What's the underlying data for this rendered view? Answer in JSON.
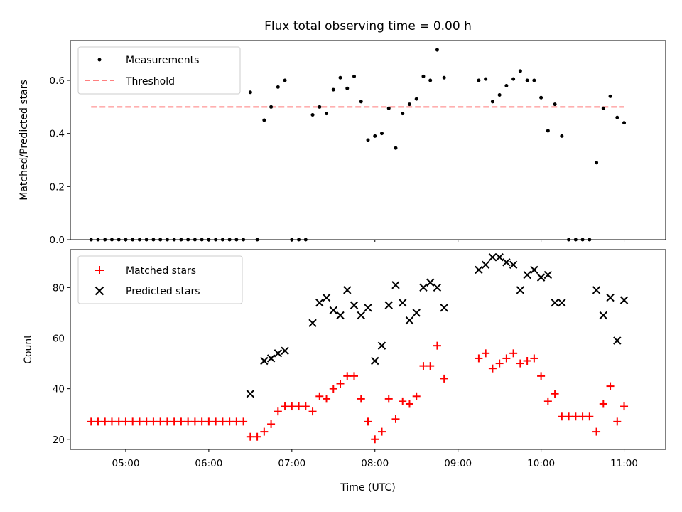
{
  "chart_data": [
    {
      "type": "scatter",
      "title": "Flux total observing time = 0.00 h",
      "xlabel": "",
      "ylabel": "Matched/Predicted stars",
      "ylim": [
        0,
        0.75
      ],
      "yticks": [
        0,
        0.2,
        0.4,
        0.6
      ],
      "ytick_labels": [
        "0.0",
        "0.2",
        "0.4",
        "0.6"
      ],
      "legend": {
        "placement": "top-left",
        "entries": [
          "Measurements",
          "Threshold"
        ]
      },
      "threshold": {
        "name": "Threshold",
        "value": 0.5,
        "x": [
          "04:35",
          "11:00"
        ],
        "color": "#ff7f7f"
      },
      "series": [
        {
          "name": "Measurements",
          "color": "#000000",
          "marker": "dot",
          "points": [
            [
              "04:35",
              0
            ],
            [
              "04:40",
              0
            ],
            [
              "04:45",
              0
            ],
            [
              "04:50",
              0
            ],
            [
              "04:55",
              0
            ],
            [
              "05:00",
              0
            ],
            [
              "05:05",
              0
            ],
            [
              "05:10",
              0
            ],
            [
              "05:15",
              0
            ],
            [
              "05:20",
              0
            ],
            [
              "05:25",
              0
            ],
            [
              "05:30",
              0
            ],
            [
              "05:35",
              0
            ],
            [
              "05:40",
              0
            ],
            [
              "05:45",
              0
            ],
            [
              "05:50",
              0
            ],
            [
              "05:55",
              0
            ],
            [
              "06:00",
              0
            ],
            [
              "06:05",
              0
            ],
            [
              "06:10",
              0
            ],
            [
              "06:15",
              0
            ],
            [
              "06:20",
              0
            ],
            [
              "06:25",
              0
            ],
            [
              "06:30",
              0.555
            ],
            [
              "06:35",
              0
            ],
            [
              "06:40",
              0.45
            ],
            [
              "06:45",
              0.5
            ],
            [
              "06:50",
              0.575
            ],
            [
              "06:55",
              0.6
            ],
            [
              "07:00",
              0
            ],
            [
              "07:05",
              0
            ],
            [
              "07:10",
              0
            ],
            [
              "07:15",
              0.47
            ],
            [
              "07:20",
              0.5
            ],
            [
              "07:25",
              0.475
            ],
            [
              "07:30",
              0.565
            ],
            [
              "07:35",
              0.61
            ],
            [
              "07:40",
              0.57
            ],
            [
              "07:45",
              0.615
            ],
            [
              "07:50",
              0.52
            ],
            [
              "07:55",
              0.375
            ],
            [
              "08:00",
              0.39
            ],
            [
              "08:05",
              0.4
            ],
            [
              "08:10",
              0.495
            ],
            [
              "08:15",
              0.345
            ],
            [
              "08:20",
              0.475
            ],
            [
              "08:25",
              0.51
            ],
            [
              "08:30",
              0.53
            ],
            [
              "08:35",
              0.615
            ],
            [
              "08:40",
              0.6
            ],
            [
              "08:45",
              0.715
            ],
            [
              "08:50",
              0.61
            ],
            [
              "09:15",
              0.6
            ],
            [
              "09:20",
              0.605
            ],
            [
              "09:25",
              0.52
            ],
            [
              "09:30",
              0.545
            ],
            [
              "09:35",
              0.58
            ],
            [
              "09:40",
              0.605
            ],
            [
              "09:45",
              0.635
            ],
            [
              "09:50",
              0.6
            ],
            [
              "09:55",
              0.6
            ],
            [
              "10:00",
              0.535
            ],
            [
              "10:05",
              0.41
            ],
            [
              "10:10",
              0.51
            ],
            [
              "10:15",
              0.39
            ],
            [
              "10:20",
              0
            ],
            [
              "10:25",
              0
            ],
            [
              "10:30",
              0
            ],
            [
              "10:35",
              0
            ],
            [
              "10:40",
              0.29
            ],
            [
              "10:45",
              0.495
            ],
            [
              "10:50",
              0.54
            ],
            [
              "10:55",
              0.46
            ],
            [
              "11:00",
              0.44
            ]
          ]
        }
      ]
    },
    {
      "type": "scatter",
      "title": "",
      "xlabel": "Time (UTC)",
      "ylabel": "Count",
      "xlim": [
        "04:20",
        "11:30"
      ],
      "xticks": [
        "05:00",
        "06:00",
        "07:00",
        "08:00",
        "09:00",
        "10:00",
        "11:00"
      ],
      "ylim": [
        16,
        95
      ],
      "yticks": [
        20,
        40,
        60,
        80
      ],
      "ytick_labels": [
        "20",
        "40",
        "60",
        "80"
      ],
      "legend": {
        "placement": "top-left",
        "entries": [
          "Matched stars",
          "Predicted stars"
        ]
      },
      "series": [
        {
          "name": "Matched stars",
          "color": "#ff0000",
          "marker": "plus",
          "points": [
            [
              "04:35",
              27
            ],
            [
              "04:40",
              27
            ],
            [
              "04:45",
              27
            ],
            [
              "04:50",
              27
            ],
            [
              "04:55",
              27
            ],
            [
              "05:00",
              27
            ],
            [
              "05:05",
              27
            ],
            [
              "05:10",
              27
            ],
            [
              "05:15",
              27
            ],
            [
              "05:20",
              27
            ],
            [
              "05:25",
              27
            ],
            [
              "05:30",
              27
            ],
            [
              "05:35",
              27
            ],
            [
              "05:40",
              27
            ],
            [
              "05:45",
              27
            ],
            [
              "05:50",
              27
            ],
            [
              "05:55",
              27
            ],
            [
              "06:00",
              27
            ],
            [
              "06:05",
              27
            ],
            [
              "06:10",
              27
            ],
            [
              "06:15",
              27
            ],
            [
              "06:20",
              27
            ],
            [
              "06:25",
              27
            ],
            [
              "06:30",
              21
            ],
            [
              "06:35",
              21
            ],
            [
              "06:40",
              23
            ],
            [
              "06:45",
              26
            ],
            [
              "06:50",
              31
            ],
            [
              "06:55",
              33
            ],
            [
              "07:00",
              33
            ],
            [
              "07:05",
              33
            ],
            [
              "07:10",
              33
            ],
            [
              "07:15",
              31
            ],
            [
              "07:20",
              37
            ],
            [
              "07:25",
              36
            ],
            [
              "07:30",
              40
            ],
            [
              "07:35",
              42
            ],
            [
              "07:40",
              45
            ],
            [
              "07:45",
              45
            ],
            [
              "07:50",
              36
            ],
            [
              "07:55",
              27
            ],
            [
              "08:00",
              20
            ],
            [
              "08:05",
              23
            ],
            [
              "08:10",
              36
            ],
            [
              "08:15",
              28
            ],
            [
              "08:20",
              35
            ],
            [
              "08:25",
              34
            ],
            [
              "08:30",
              37
            ],
            [
              "08:35",
              49
            ],
            [
              "08:40",
              49
            ],
            [
              "08:45",
              57
            ],
            [
              "08:50",
              44
            ],
            [
              "09:15",
              52
            ],
            [
              "09:20",
              54
            ],
            [
              "09:25",
              48
            ],
            [
              "09:30",
              50
            ],
            [
              "09:35",
              52
            ],
            [
              "09:40",
              54
            ],
            [
              "09:45",
              50
            ],
            [
              "09:50",
              51
            ],
            [
              "09:55",
              52
            ],
            [
              "10:00",
              45
            ],
            [
              "10:05",
              35
            ],
            [
              "10:10",
              38
            ],
            [
              "10:15",
              29
            ],
            [
              "10:20",
              29
            ],
            [
              "10:25",
              29
            ],
            [
              "10:30",
              29
            ],
            [
              "10:35",
              29
            ],
            [
              "10:40",
              23
            ],
            [
              "10:45",
              34
            ],
            [
              "10:50",
              41
            ],
            [
              "10:55",
              27
            ],
            [
              "11:00",
              33
            ]
          ]
        },
        {
          "name": "Predicted stars",
          "color": "#000000",
          "marker": "x",
          "points": [
            [
              "06:30",
              38
            ],
            [
              "06:40",
              51
            ],
            [
              "06:45",
              52
            ],
            [
              "06:50",
              54
            ],
            [
              "06:55",
              55
            ],
            [
              "07:15",
              66
            ],
            [
              "07:20",
              74
            ],
            [
              "07:25",
              76
            ],
            [
              "07:30",
              71
            ],
            [
              "07:35",
              69
            ],
            [
              "07:40",
              79
            ],
            [
              "07:45",
              73
            ],
            [
              "07:50",
              69
            ],
            [
              "07:55",
              72
            ],
            [
              "08:00",
              51
            ],
            [
              "08:05",
              57
            ],
            [
              "08:10",
              73
            ],
            [
              "08:15",
              81
            ],
            [
              "08:20",
              74
            ],
            [
              "08:25",
              67
            ],
            [
              "08:30",
              70
            ],
            [
              "08:35",
              80
            ],
            [
              "08:40",
              82
            ],
            [
              "08:45",
              80
            ],
            [
              "08:50",
              72
            ],
            [
              "09:15",
              87
            ],
            [
              "09:20",
              89
            ],
            [
              "09:25",
              92
            ],
            [
              "09:30",
              92
            ],
            [
              "09:35",
              90
            ],
            [
              "09:40",
              89
            ],
            [
              "09:45",
              79
            ],
            [
              "09:50",
              85
            ],
            [
              "09:55",
              87
            ],
            [
              "10:00",
              84
            ],
            [
              "10:05",
              85
            ],
            [
              "10:10",
              74
            ],
            [
              "10:15",
              74
            ],
            [
              "10:40",
              79
            ],
            [
              "10:45",
              69
            ],
            [
              "10:50",
              76
            ],
            [
              "10:55",
              59
            ],
            [
              "11:00",
              75
            ]
          ]
        }
      ]
    }
  ]
}
